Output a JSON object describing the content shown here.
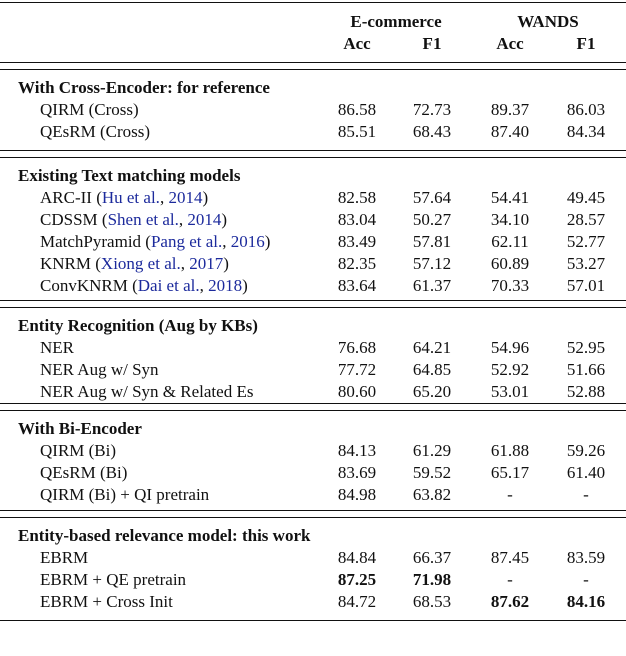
{
  "table": {
    "header": {
      "groups": [
        "E-commerce",
        "WANDS"
      ],
      "columns": [
        "Acc",
        "F1",
        "Acc",
        "F1"
      ]
    },
    "sections": [
      {
        "title": "With Cross-Encoder: for reference",
        "rows": [
          {
            "name": [
              {
                "text": "QIRM (Cross)"
              }
            ],
            "cells": [
              "86.58",
              "72.73",
              "89.37",
              "86.03"
            ],
            "bold": []
          },
          {
            "name": [
              {
                "text": "QEsRM (Cross)"
              }
            ],
            "cells": [
              "85.51",
              "68.43",
              "87.40",
              "84.34"
            ],
            "bold": []
          }
        ]
      },
      {
        "title": "Existing Text matching models",
        "rows": [
          {
            "name": [
              {
                "text": "ARC-II ("
              },
              {
                "text": "Hu et al.",
                "link": true
              },
              {
                "text": ", "
              },
              {
                "text": "2014",
                "link": true
              },
              {
                "text": ")"
              }
            ],
            "cells": [
              "82.58",
              "57.64",
              "54.41",
              "49.45"
            ],
            "bold": []
          },
          {
            "name": [
              {
                "text": "CDSSM ("
              },
              {
                "text": "Shen et al.",
                "link": true
              },
              {
                "text": ", "
              },
              {
                "text": "2014",
                "link": true
              },
              {
                "text": ")"
              }
            ],
            "cells": [
              "83.04",
              "50.27",
              "34.10",
              "28.57"
            ],
            "bold": []
          },
          {
            "name": [
              {
                "text": "MatchPyramid ("
              },
              {
                "text": "Pang et al.",
                "link": true
              },
              {
                "text": ", "
              },
              {
                "text": "2016",
                "link": true
              },
              {
                "text": ")"
              }
            ],
            "cells": [
              "83.49",
              "57.81",
              "62.11",
              "52.77"
            ],
            "bold": []
          },
          {
            "name": [
              {
                "text": "KNRM ("
              },
              {
                "text": "Xiong et al.",
                "link": true
              },
              {
                "text": ", "
              },
              {
                "text": "2017",
                "link": true
              },
              {
                "text": ")"
              }
            ],
            "cells": [
              "82.35",
              "57.12",
              "60.89",
              "53.27"
            ],
            "bold": []
          },
          {
            "name": [
              {
                "text": "ConvKNRM ("
              },
              {
                "text": "Dai et al.",
                "link": true
              },
              {
                "text": ", "
              },
              {
                "text": "2018",
                "link": true
              },
              {
                "text": ")"
              }
            ],
            "cells": [
              "83.64",
              "61.37",
              "70.33",
              "57.01"
            ],
            "bold": []
          }
        ]
      },
      {
        "title": "Entity Recognition (Aug by KBs)",
        "rows": [
          {
            "name": [
              {
                "text": "NER"
              }
            ],
            "cells": [
              "76.68",
              "64.21",
              "54.96",
              "52.95"
            ],
            "bold": []
          },
          {
            "name": [
              {
                "text": "NER Aug w/ Syn"
              }
            ],
            "cells": [
              "77.72",
              "64.85",
              "52.92",
              "51.66"
            ],
            "bold": []
          },
          {
            "name": [
              {
                "text": "NER Aug w/ Syn & Related Es"
              }
            ],
            "cells": [
              "80.60",
              "65.20",
              "53.01",
              "52.88"
            ],
            "bold": []
          }
        ]
      },
      {
        "title": "With Bi-Encoder",
        "rows": [
          {
            "name": [
              {
                "text": "QIRM (Bi)"
              }
            ],
            "cells": [
              "84.13",
              "61.29",
              "61.88",
              "59.26"
            ],
            "bold": []
          },
          {
            "name": [
              {
                "text": "QEsRM (Bi)"
              }
            ],
            "cells": [
              "83.69",
              "59.52",
              "65.17",
              "61.40"
            ],
            "bold": []
          },
          {
            "name": [
              {
                "text": "QIRM (Bi) + QI pretrain"
              }
            ],
            "cells": [
              "84.98",
              "63.82",
              "-",
              "-"
            ],
            "bold": []
          }
        ]
      },
      {
        "title": "Entity-based relevance model: this work",
        "rows": [
          {
            "name": [
              {
                "text": "EBRM"
              }
            ],
            "cells": [
              "84.84",
              "66.37",
              "87.45",
              "83.59"
            ],
            "bold": []
          },
          {
            "name": [
              {
                "text": "EBRM + QE pretrain"
              }
            ],
            "cells": [
              "87.25",
              "71.98",
              "-",
              "-"
            ],
            "bold": [
              0,
              1
            ]
          },
          {
            "name": [
              {
                "text": "EBRM + Cross Init"
              }
            ],
            "cells": [
              "84.72",
              "68.53",
              "87.62",
              "84.16"
            ],
            "bold": [
              2,
              3
            ]
          }
        ]
      }
    ]
  }
}
